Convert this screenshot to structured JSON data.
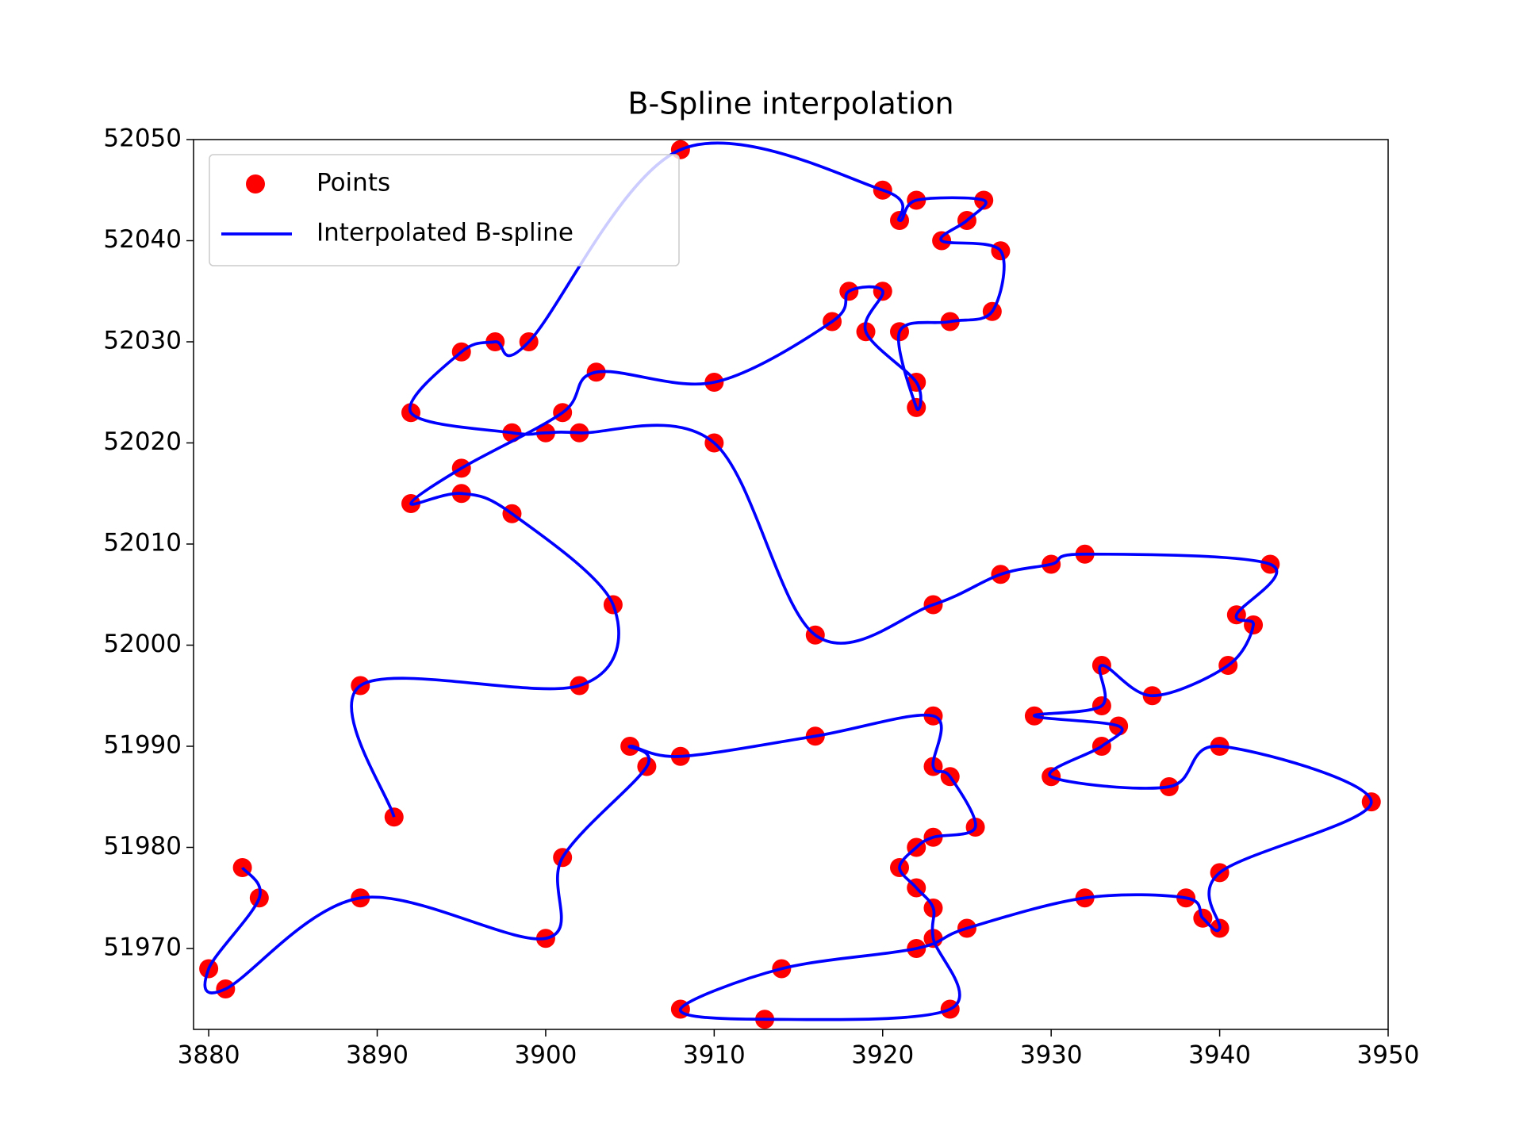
{
  "chart_data": {
    "type": "scatter",
    "title": "B-Spline interpolation",
    "xlim": [
      3879.1,
      3950
    ],
    "ylim": [
      51962,
      52050
    ],
    "xticks": [
      3880,
      3890,
      3900,
      3910,
      3920,
      3930,
      3940,
      3950
    ],
    "yticks": [
      51970,
      51980,
      51990,
      52000,
      52010,
      52020,
      52030,
      52040,
      52050
    ],
    "legend": "upper left",
    "series": [
      {
        "name": "Points",
        "type": "scatter",
        "color": "#ff0000",
        "x": [
          3891,
          3889,
          3902,
          3904,
          3898,
          3895,
          3892,
          3895,
          3901,
          3903,
          3910,
          3917,
          3918,
          3920,
          3919,
          3922,
          3922,
          3921,
          3924,
          3926.5,
          3927,
          3923.5,
          3925,
          3926,
          3922,
          3921,
          3920,
          3908,
          3899,
          3897,
          3895,
          3892,
          3898,
          3900,
          3902,
          3910,
          3916,
          3923,
          3927,
          3930,
          3932,
          3943,
          3941,
          3942,
          3940.5,
          3936,
          3933,
          3933,
          3929,
          3934,
          3933,
          3930,
          3937,
          3940,
          3949,
          3940,
          3940,
          3939,
          3938,
          3932,
          3925,
          3922,
          3914,
          3908,
          3913,
          3924,
          3923,
          3923,
          3922,
          3921,
          3922,
          3923,
          3925.5,
          3924,
          3923,
          3923,
          3916,
          3908,
          3905,
          3906,
          3901,
          3900,
          3889,
          3881,
          3880,
          3883,
          3882
        ],
        "values": [
          51983,
          51996,
          51996,
          52004,
          52013,
          52015,
          52014,
          52017.5,
          52023,
          52027,
          52026,
          52032,
          52035,
          52035,
          52031,
          52026,
          52023.5,
          52031,
          52032,
          52033,
          52039,
          52040,
          52042,
          52044,
          52044,
          52042,
          52045,
          52049,
          52030,
          52030,
          52029,
          52023,
          52021,
          52021,
          52021,
          52020,
          52001,
          52004,
          52007,
          52008,
          52009,
          52008,
          52003,
          52002,
          51998,
          51995,
          51998,
          51994,
          51993,
          51992,
          51990,
          51987,
          51986,
          51990,
          51984.5,
          51977.5,
          51972,
          51973,
          51975,
          51975,
          51972,
          51970,
          51968,
          51964,
          51963,
          51964,
          51971,
          51974,
          51976,
          51978,
          51980,
          51981,
          51982,
          51987,
          51988,
          51993,
          51991,
          51989,
          51990,
          51988,
          51979,
          51971,
          51975,
          51966,
          51968,
          51975,
          51978
        ]
      },
      {
        "name": "Interpolated B-spline",
        "type": "line",
        "color": "#0000ff",
        "x": [
          3891,
          3889,
          3902,
          3904,
          3898,
          3895,
          3892,
          3895,
          3901,
          3903,
          3910,
          3917,
          3918,
          3920,
          3919,
          3922,
          3922,
          3921,
          3924,
          3926.5,
          3927,
          3923.5,
          3925,
          3926,
          3922,
          3921,
          3920,
          3908,
          3899,
          3897,
          3895,
          3892,
          3898,
          3900,
          3902,
          3910,
          3916,
          3923,
          3927,
          3930,
          3932,
          3943,
          3941,
          3942,
          3940.5,
          3936,
          3933,
          3933,
          3929,
          3934,
          3933,
          3930,
          3937,
          3940,
          3949,
          3940,
          3940,
          3939,
          3938,
          3932,
          3925,
          3922,
          3914,
          3908,
          3913,
          3924,
          3923,
          3923,
          3922,
          3921,
          3922,
          3923,
          3925.5,
          3924,
          3923,
          3923,
          3916,
          3908,
          3905,
          3906,
          3901,
          3900,
          3889,
          3881,
          3880,
          3883,
          3882
        ],
        "values": [
          51983,
          51996,
          51996,
          52004,
          52013,
          52015,
          52014,
          52017.5,
          52023,
          52027,
          52026,
          52032,
          52035,
          52035,
          52031,
          52026,
          52023.5,
          52031,
          52032,
          52033,
          52039,
          52040,
          52042,
          52044,
          52044,
          52042,
          52045,
          52049,
          52030,
          52030,
          52029,
          52023,
          52021,
          52021,
          52021,
          52020,
          52001,
          52004,
          52007,
          52008,
          52009,
          52008,
          52003,
          52002,
          51998,
          51995,
          51998,
          51994,
          51993,
          51992,
          51990,
          51987,
          51986,
          51990,
          51984.5,
          51977.5,
          51972,
          51973,
          51975,
          51975,
          51972,
          51970,
          51968,
          51964,
          51963,
          51964,
          51971,
          51974,
          51976,
          51978,
          51980,
          51981,
          51982,
          51987,
          51988,
          51993,
          51991,
          51989,
          51990,
          51988,
          51979,
          51971,
          51975,
          51966,
          51968,
          51975,
          51978
        ]
      }
    ]
  }
}
